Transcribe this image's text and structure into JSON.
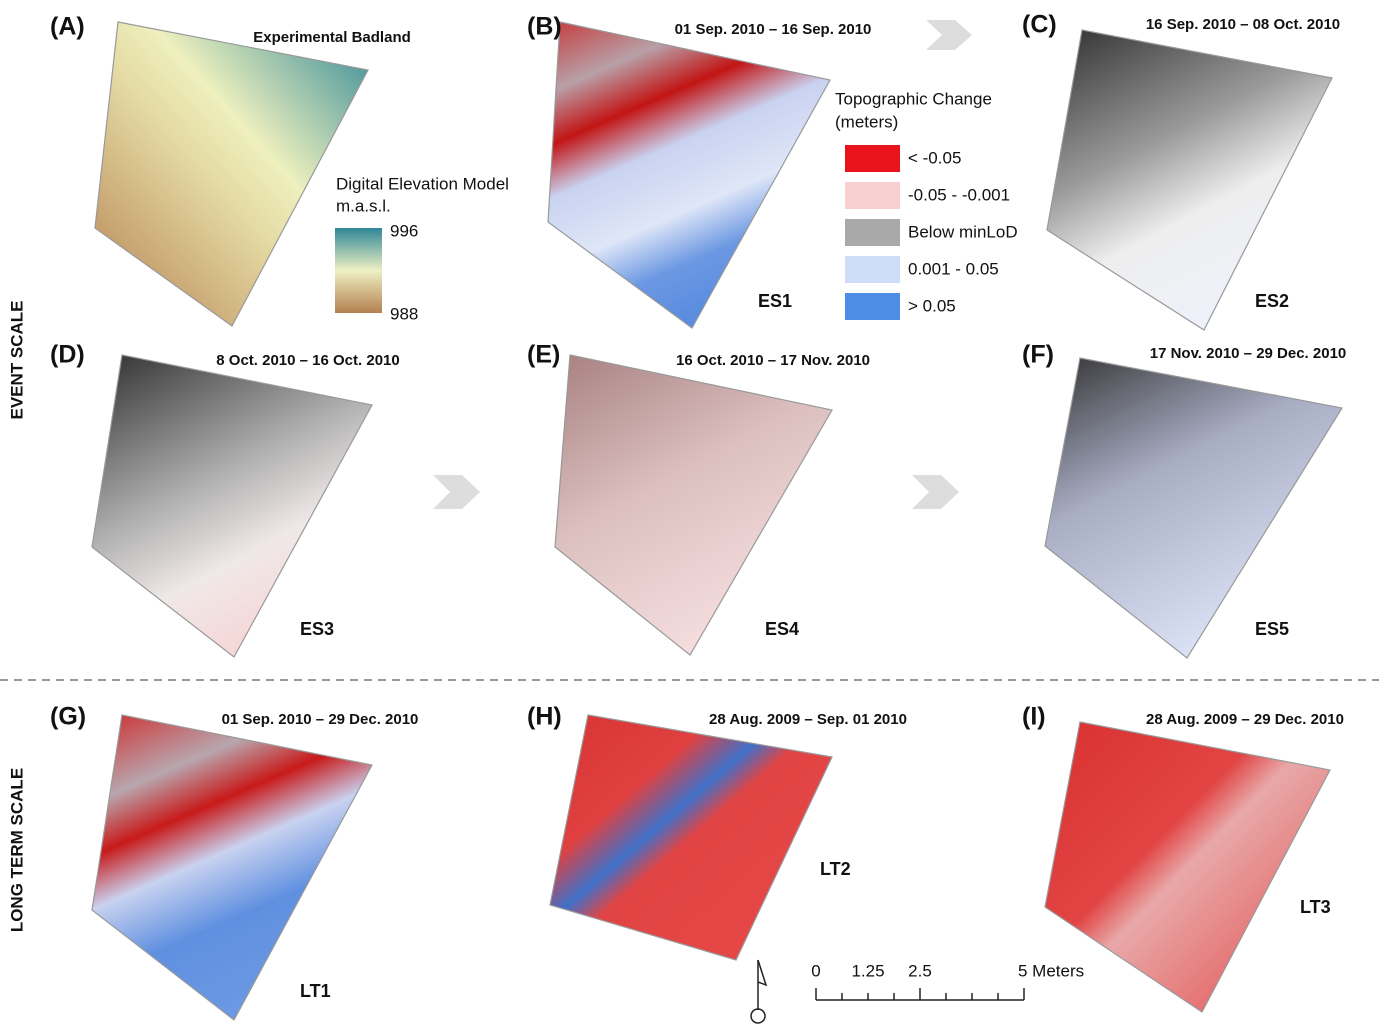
{
  "panels": [
    {
      "label": "(A)",
      "title": "Experimental Badland"
    },
    {
      "label": "(B)",
      "title": "01 Sep. 2010 – 16 Sep. 2010",
      "code": "ES1"
    },
    {
      "label": "(C)",
      "title": "16 Sep. 2010 – 08 Oct. 2010",
      "code": "ES2"
    },
    {
      "label": "(D)",
      "title": "8 Oct. 2010 – 16 Oct. 2010",
      "code": "ES3"
    },
    {
      "label": "(E)",
      "title": "16 Oct. 2010 – 17 Nov. 2010",
      "code": "ES4"
    },
    {
      "label": "(F)",
      "title": "17 Nov. 2010 – 29 Dec. 2010",
      "code": "ES5"
    },
    {
      "label": "(G)",
      "title": "01 Sep. 2010 – 29 Dec. 2010",
      "code": "LT1"
    },
    {
      "label": "(H)",
      "title": "28 Aug. 2009 – Sep. 01 2010",
      "code": "LT2"
    },
    {
      "label": "(I)",
      "title": "28 Aug. 2009 – 29 Dec. 2010",
      "code": "LT3"
    }
  ],
  "dem_legend": {
    "title": "Digital Elevation Model",
    "unit": "m.a.s.l.",
    "max": "996",
    "min": "988"
  },
  "change_legend": {
    "title": "Topographic Change",
    "unit": "(meters)",
    "items": [
      {
        "label": "< -0.05",
        "color": "#e8131b"
      },
      {
        "label": "-0.05 - -0.001",
        "color": "#f8cfcf"
      },
      {
        "label": "Below minLoD",
        "color": "#a9a9a9"
      },
      {
        "label": "0.001 - 0.05",
        "color": "#cfdcf7"
      },
      {
        "label": "> 0.05",
        "color": "#4d8de6"
      }
    ]
  },
  "row_labels": [
    "EVENT SCALE",
    "LONG TERM SCALE"
  ],
  "scale_bar": {
    "labels": [
      "0",
      "1.25",
      "2.5",
      "5 Meters"
    ]
  }
}
